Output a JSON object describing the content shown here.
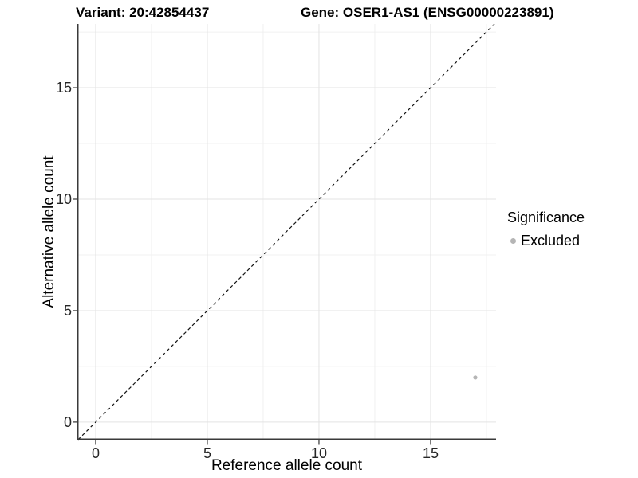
{
  "header": {
    "variant_title": "Variant: 20:42854437",
    "gene_title": "Gene: OSER1-AS1 (ENSG00000223891)"
  },
  "chart_data": {
    "type": "scatter",
    "title": "Variant: 20:42854437   Gene: OSER1-AS1 (ENSG00000223891)",
    "xlabel": "Reference allele count",
    "ylabel": "Alternative allele count",
    "xlim": [
      -0.82,
      17.93
    ],
    "ylim": [
      -0.79,
      17.86
    ],
    "x_ticks": [
      0,
      5,
      10,
      15
    ],
    "y_ticks": [
      0,
      5,
      10,
      15
    ],
    "x_tick_labels": [
      "0",
      "5",
      "10",
      "15"
    ],
    "y_tick_labels": [
      "0",
      "5",
      "10",
      "15"
    ],
    "grid": {
      "major": true,
      "minor": true,
      "major_color": "#e3e3e3",
      "minor_color": "#f0f0f0"
    },
    "reference_line": {
      "type": "identity y = x",
      "style": "dashed",
      "color": "#111111"
    },
    "series": [
      {
        "name": "Excluded",
        "color": "#b5b5b5",
        "points": [
          {
            "x": 17,
            "y": 2
          }
        ]
      }
    ],
    "legend": {
      "position": "right",
      "title": "Significance",
      "entries": [
        {
          "label": "Excluded",
          "color": "#b5b5b5"
        }
      ]
    }
  },
  "colors": {
    "axis_line": "#3a3a3a",
    "tick_mark": "#333333",
    "tick_text": "#262626",
    "background": "#ffffff"
  }
}
